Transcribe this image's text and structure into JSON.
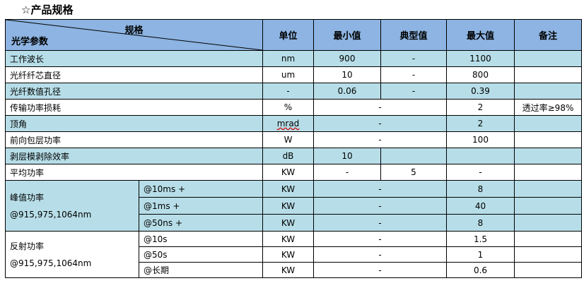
{
  "title": "☆产品规格",
  "header": {
    "spec": "规格",
    "param": "光学参数",
    "unit": "单位",
    "min": "最小值",
    "typ": "典型值",
    "max": "最大值",
    "note": "备注"
  },
  "rows": [
    {
      "name": "工作波长",
      "unit": "nm",
      "min": "900",
      "typ": "-",
      "max": "1100",
      "note": ""
    },
    {
      "name": "光纤纤芯直径",
      "unit": "um",
      "min": "10",
      "typ": "-",
      "max": "800",
      "note": ""
    },
    {
      "name": "光纤数值孔径",
      "unit": "-",
      "min": "0.06",
      "typ": "-",
      "max": "0.39",
      "note": ""
    },
    {
      "name": "传输功率损耗",
      "unit": "%",
      "mintyp": "-",
      "max": "2",
      "note": "透过率≥98%"
    },
    {
      "name": "顶角",
      "unit": "mrad",
      "mintyp": "-",
      "max": "2",
      "note": ""
    },
    {
      "name": "前向包层功率",
      "unit": "W",
      "mintyp": "-",
      "max": "100",
      "note": ""
    },
    {
      "name": "剥层模剥除效率",
      "unit": "dB",
      "min": "10",
      "typ": "",
      "max": "",
      "note": ""
    },
    {
      "name": "平均功率",
      "unit": "KW",
      "min": "-",
      "typ": "5",
      "max": "-",
      "note": ""
    }
  ],
  "peak": {
    "name": "峰值功率",
    "sub": "@915,975,1064nm",
    "rows": [
      {
        "cond": "@10ms +",
        "unit": "KW",
        "mintyp": "-",
        "max": "8",
        "note": ""
      },
      {
        "cond": "@1ms +",
        "unit": "KW",
        "mintyp": "-",
        "max": "40",
        "note": ""
      },
      {
        "cond": "@50ns +",
        "unit": "KW",
        "mintyp": "-",
        "max": "8",
        "note": ""
      }
    ]
  },
  "reflect": {
    "name": "反射功率",
    "sub": "@915,975,1064nm",
    "rows": [
      {
        "cond": "@10s",
        "unit": "KW",
        "mintyp": "-",
        "max": "1.5",
        "note": ""
      },
      {
        "cond": "@50s",
        "unit": "KW",
        "mintyp": "-",
        "max": "1",
        "note": ""
      },
      {
        "cond": "@长期",
        "unit": "KW",
        "mintyp": "-",
        "max": "0.6",
        "note": ""
      }
    ]
  },
  "colors": {
    "header": "#8db4e2",
    "row_blue": "#b7dee8",
    "row_white": "#ffffff"
  }
}
